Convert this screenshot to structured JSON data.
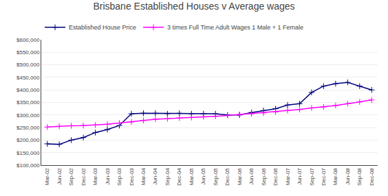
{
  "chart_data": {
    "type": "line",
    "title": "Brisbane Established Houses v Average wages",
    "categories": [
      "Mar-02",
      "Jun-02",
      "Sep-02",
      "Dec-02",
      "Mar-03",
      "Jun-03",
      "Sep-03",
      "Dec-03",
      "Mar-04",
      "Jun-04",
      "Sep-04",
      "Dec-04",
      "Mar-05",
      "Jun-05",
      "Sep-05",
      "Dec-05",
      "Mar-06",
      "Jun-06",
      "Sep-06",
      "Dec-06",
      "Mar-07",
      "Jun-07",
      "Sep-07",
      "Dec-07",
      "Mar-08",
      "Jun-08",
      "Sep-08",
      "Dec-08"
    ],
    "series": [
      {
        "name": "Established House Price",
        "color": "#000080",
        "marker": "plus",
        "values": [
          185000,
          183000,
          200000,
          210000,
          230000,
          242000,
          258000,
          305000,
          307000,
          307000,
          305000,
          307000,
          305000,
          305000,
          305000,
          300000,
          300000,
          310000,
          318000,
          325000,
          340000,
          345000,
          390000,
          415000,
          425000,
          430000,
          415000,
          400000
        ]
      },
      {
        "name": "3 times Full Time Adult Wages 1 Male + 1 Female",
        "color": "#ff00ff",
        "marker": "plus",
        "values": [
          252000,
          255000,
          257000,
          258000,
          260000,
          263000,
          268000,
          272000,
          278000,
          283000,
          285000,
          288000,
          290000,
          293000,
          295000,
          298000,
          302000,
          305000,
          308000,
          312000,
          318000,
          322000,
          328000,
          332000,
          338000,
          345000,
          352000,
          360000
        ]
      }
    ],
    "ylim": [
      100000,
      600000
    ],
    "yticks": [
      {
        "value": 100000,
        "label": "$100,000"
      },
      {
        "value": 150000,
        "label": "$150,000"
      },
      {
        "value": 200000,
        "label": "$200,000"
      },
      {
        "value": 250000,
        "label": "$250,000"
      },
      {
        "value": 300000,
        "label": "$300,000"
      },
      {
        "value": 350000,
        "label": "$350,000"
      },
      {
        "value": 400000,
        "label": "$400,000"
      },
      {
        "value": 450000,
        "label": "$450,000"
      },
      {
        "value": 500000,
        "label": "$500,000"
      },
      {
        "value": 550000,
        "label": "$550,000"
      },
      {
        "value": 600000,
        "label": "$600,000"
      }
    ],
    "grid": true,
    "legend": "upper left"
  }
}
